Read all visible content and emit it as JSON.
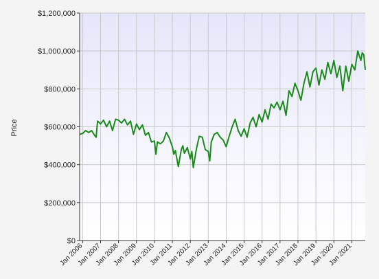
{
  "chart_data": {
    "type": "line",
    "title": "",
    "xlabel": "",
    "ylabel": "Price",
    "ylim": [
      0,
      1200000
    ],
    "yticks": [
      0,
      200000,
      400000,
      600000,
      800000,
      1000000,
      1200000
    ],
    "ytick_labels": [
      "$0",
      "$200,000",
      "$400,000",
      "$600,000",
      "$800,000",
      "$1,000,000",
      "$1,200,000"
    ],
    "xlim": [
      "2005-11",
      "2021-10"
    ],
    "xticks": [
      "2006-01",
      "2007-01",
      "2008-01",
      "2009-01",
      "2010-01",
      "2011-01",
      "2012-01",
      "2013-01",
      "2014-01",
      "2015-01",
      "2016-01",
      "2017-01",
      "2018-01",
      "2019-01",
      "2020-01",
      "2021-01"
    ],
    "xtick_labels": [
      "Jan 2006",
      "Jan 2007",
      "Jan 2008",
      "Jan 2009",
      "Jan 2010",
      "Jan 2011",
      "Jan 2012",
      "Jan 2013",
      "Jan 2014",
      "Jan 2015",
      "Jan 2016",
      "Jan 2017",
      "Jan 2018",
      "Jan 2019",
      "Jan 2020",
      "Jan 2021"
    ],
    "grid": true,
    "legend": "none",
    "colors": {
      "line": "#1a8a1a",
      "plot_bg_top": "#e6e6fa",
      "plot_bg_bottom": "#ffffff",
      "grid": "#c8c8c8"
    },
    "series": [
      {
        "x": [
          "2005-11",
          "2006-01",
          "2006-03",
          "2006-05",
          "2006-07",
          "2006-09",
          "2006-10",
          "2006-11",
          "2007-01",
          "2007-03",
          "2007-05",
          "2007-07",
          "2007-09",
          "2007-11",
          "2008-01",
          "2008-03",
          "2008-05",
          "2008-07",
          "2008-09",
          "2008-11",
          "2009-01",
          "2009-03",
          "2009-05",
          "2009-07",
          "2009-09",
          "2009-11",
          "2010-01",
          "2010-02",
          "2010-03",
          "2010-05",
          "2010-07",
          "2010-09",
          "2010-11",
          "2011-01",
          "2011-02",
          "2011-03",
          "2011-05",
          "2011-07",
          "2011-08",
          "2011-09",
          "2011-11",
          "2012-01",
          "2012-02",
          "2012-03",
          "2012-05",
          "2012-07",
          "2012-09",
          "2012-11",
          "2013-01",
          "2013-02",
          "2013-03",
          "2013-05",
          "2013-07",
          "2013-09",
          "2013-11",
          "2014-01",
          "2014-03",
          "2014-05",
          "2014-07",
          "2014-09",
          "2014-11",
          "2015-01",
          "2015-03",
          "2015-05",
          "2015-07",
          "2015-09",
          "2015-11",
          "2016-01",
          "2016-03",
          "2016-05",
          "2016-07",
          "2016-09",
          "2016-11",
          "2017-01",
          "2017-03",
          "2017-05",
          "2017-07",
          "2017-09",
          "2017-11",
          "2018-01",
          "2018-03",
          "2018-05",
          "2018-07",
          "2018-09",
          "2018-11",
          "2019-01",
          "2019-03",
          "2019-05",
          "2019-07",
          "2019-09",
          "2019-11",
          "2020-01",
          "2020-03",
          "2020-05",
          "2020-07",
          "2020-09",
          "2020-11",
          "2021-01",
          "2021-03",
          "2021-05",
          "2021-07",
          "2021-08",
          "2021-09",
          "2021-10"
        ],
        "y": [
          560000,
          565000,
          580000,
          570000,
          580000,
          555000,
          545000,
          630000,
          615000,
          635000,
          600000,
          630000,
          580000,
          640000,
          635000,
          620000,
          640000,
          610000,
          630000,
          560000,
          615000,
          585000,
          610000,
          555000,
          570000,
          520000,
          525000,
          455000,
          520000,
          510000,
          525000,
          570000,
          540000,
          495000,
          455000,
          475000,
          390000,
          480000,
          500000,
          460000,
          490000,
          430000,
          470000,
          385000,
          480000,
          550000,
          545000,
          480000,
          470000,
          420000,
          520000,
          560000,
          570000,
          545000,
          530000,
          495000,
          550000,
          600000,
          640000,
          580000,
          550000,
          590000,
          545000,
          620000,
          650000,
          600000,
          665000,
          625000,
          690000,
          640000,
          720000,
          700000,
          730000,
          690000,
          735000,
          660000,
          790000,
          760000,
          830000,
          790000,
          740000,
          830000,
          890000,
          810000,
          890000,
          910000,
          820000,
          900000,
          850000,
          940000,
          880000,
          950000,
          860000,
          920000,
          790000,
          920000,
          840000,
          930000,
          900000,
          1000000,
          950000,
          990000,
          980000,
          900000
        ]
      }
    ]
  }
}
